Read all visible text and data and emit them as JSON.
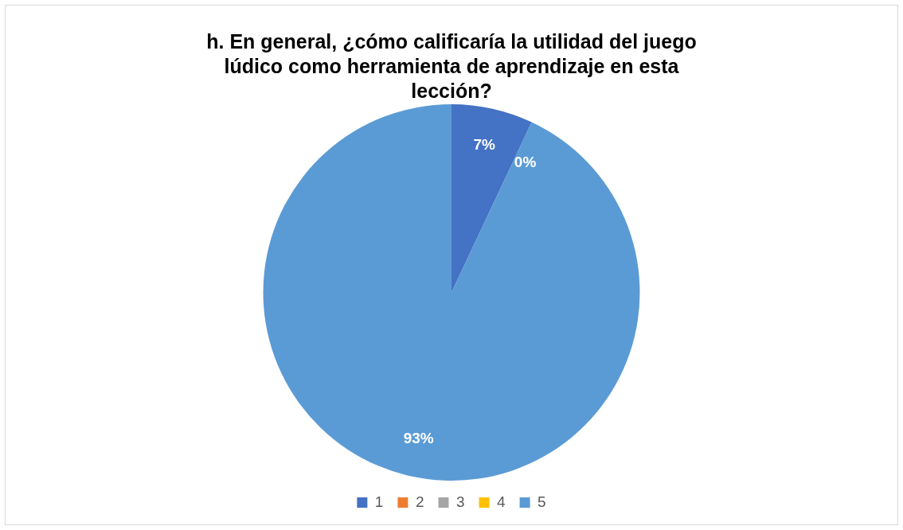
{
  "chart_data": {
    "type": "pie",
    "title": "h. En general, ¿cómo calificaría la utilidad del juego lúdico como herramienta de aprendizaje en esta lección?",
    "categories": [
      "1",
      "2",
      "3",
      "4",
      "5"
    ],
    "values": [
      7,
      0,
      0,
      0,
      93
    ],
    "value_labels": [
      "7%",
      "0%",
      null,
      null,
      "93%"
    ],
    "colors": [
      "#4472c4",
      "#ed7d31",
      "#a5a5a5",
      "#ffc000",
      "#5b9bd5"
    ],
    "legend": "bottom"
  }
}
